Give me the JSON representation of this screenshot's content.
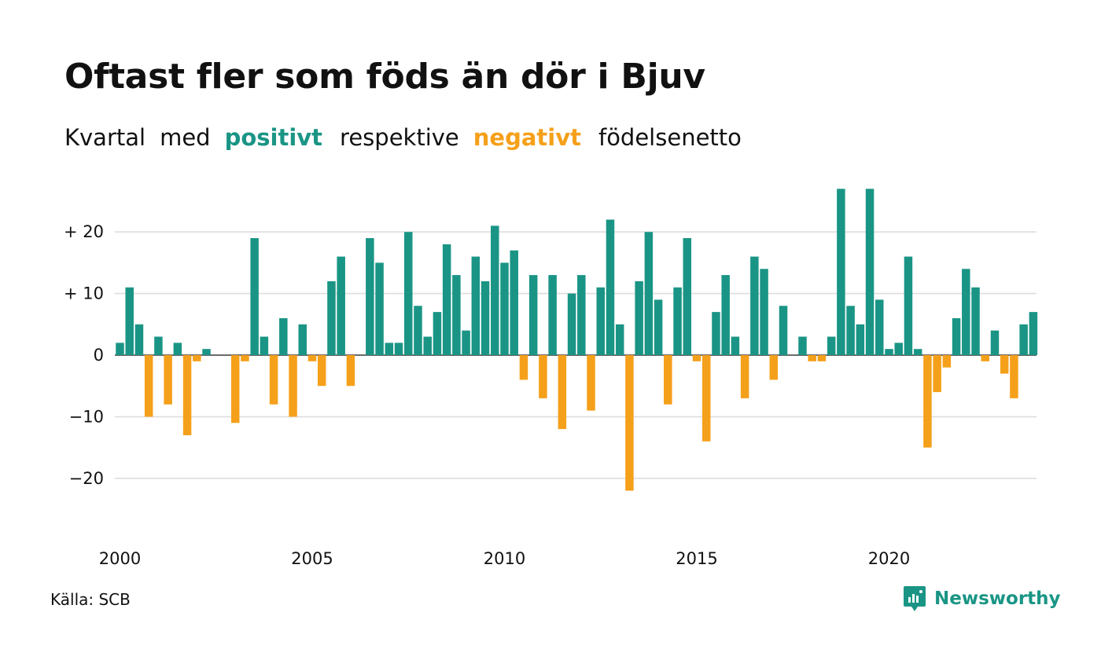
{
  "title": "Oftast fler som föds än dör i Bjuv",
  "subtitle": {
    "word1": "Kvartal",
    "word2": "med",
    "positive": "positivt",
    "word3": "respektive",
    "negative": "negativt",
    "word4": "födelsenetto"
  },
  "source": "Källa: SCB",
  "brand": {
    "name": "Newsworthy",
    "icon": "newsworthy-logo-icon"
  },
  "colors": {
    "positive": "#1a9585",
    "negative": "#f5a01a",
    "grid": "#dddddd",
    "text": "#111111"
  },
  "chart_data": {
    "type": "bar",
    "x_start": 2000,
    "x_step": 0.25,
    "values": [
      2,
      11,
      5,
      -10,
      3,
      -8,
      2,
      -13,
      -1,
      1,
      0,
      0,
      -11,
      -1,
      19,
      3,
      -8,
      6,
      -10,
      5,
      -1,
      -5,
      12,
      16,
      -5,
      0,
      19,
      15,
      2,
      2,
      20,
      8,
      3,
      7,
      18,
      13,
      4,
      16,
      12,
      21,
      15,
      17,
      -4,
      13,
      -7,
      13,
      -12,
      10,
      13,
      -9,
      11,
      22,
      5,
      -22,
      12,
      20,
      9,
      -8,
      11,
      19,
      -1,
      -14,
      7,
      13,
      3,
      -7,
      16,
      14,
      -4,
      8,
      0,
      3,
      -1,
      -1,
      3,
      27,
      8,
      5,
      27,
      9,
      1,
      2,
      16,
      1,
      -15,
      -6,
      -2,
      6,
      14,
      11,
      -1,
      4,
      -3,
      -7,
      5,
      7
    ],
    "yticks": [
      {
        "value": 20,
        "label": "+ 20"
      },
      {
        "value": 10,
        "label": "+ 10"
      },
      {
        "value": 0,
        "label": "0"
      },
      {
        "value": -10,
        "label": "−10"
      },
      {
        "value": -20,
        "label": "−20"
      }
    ],
    "xticks": [
      "2000",
      "2005",
      "2010",
      "2015",
      "2020"
    ],
    "ylim": [
      -25,
      27
    ],
    "grid": true,
    "legend": "none"
  }
}
